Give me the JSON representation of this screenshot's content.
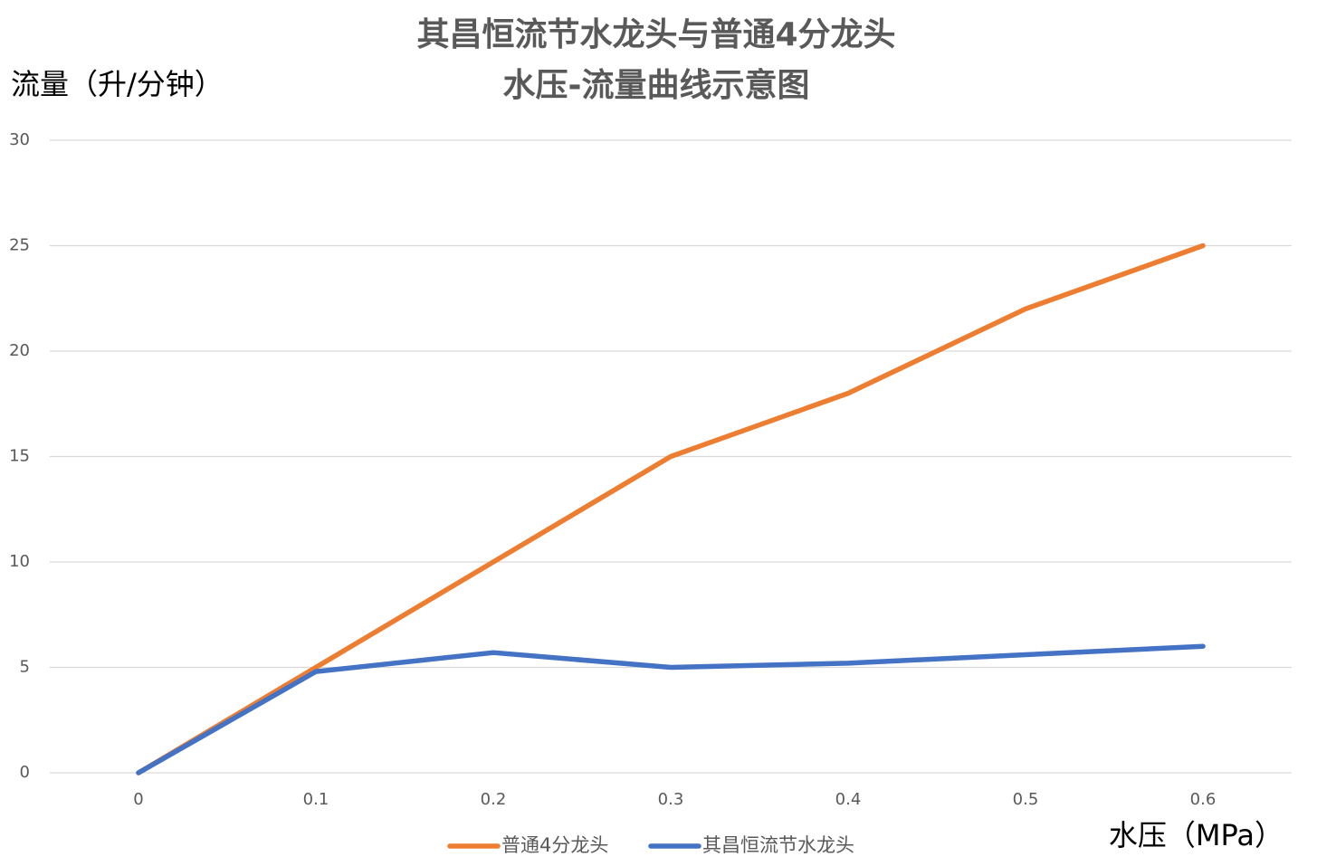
{
  "chart_data": {
    "type": "line",
    "title": [
      "其昌恒流节水龙头与普通4分龙头",
      "水压-流量曲线示意图"
    ],
    "y_label": "流量（升/分钟）",
    "x_label": "水压（MPa）",
    "categories": [
      "0",
      "0.1",
      "0.2",
      "0.3",
      "0.4",
      "0.5",
      "0.6"
    ],
    "series": [
      {
        "name": "普通4分龙头",
        "color": "#ed7d31",
        "values": [
          0,
          5,
          10,
          15,
          18,
          22,
          25
        ]
      },
      {
        "name": "其昌恒流节水龙头",
        "color": "#4472c4",
        "values": [
          0,
          4.8,
          5.7,
          5,
          5.2,
          5.6,
          6
        ]
      }
    ],
    "ylim": [
      0,
      30
    ],
    "yticks": [
      0,
      5,
      10,
      15,
      20,
      25,
      30
    ],
    "grid": true,
    "legend": "bottom"
  }
}
